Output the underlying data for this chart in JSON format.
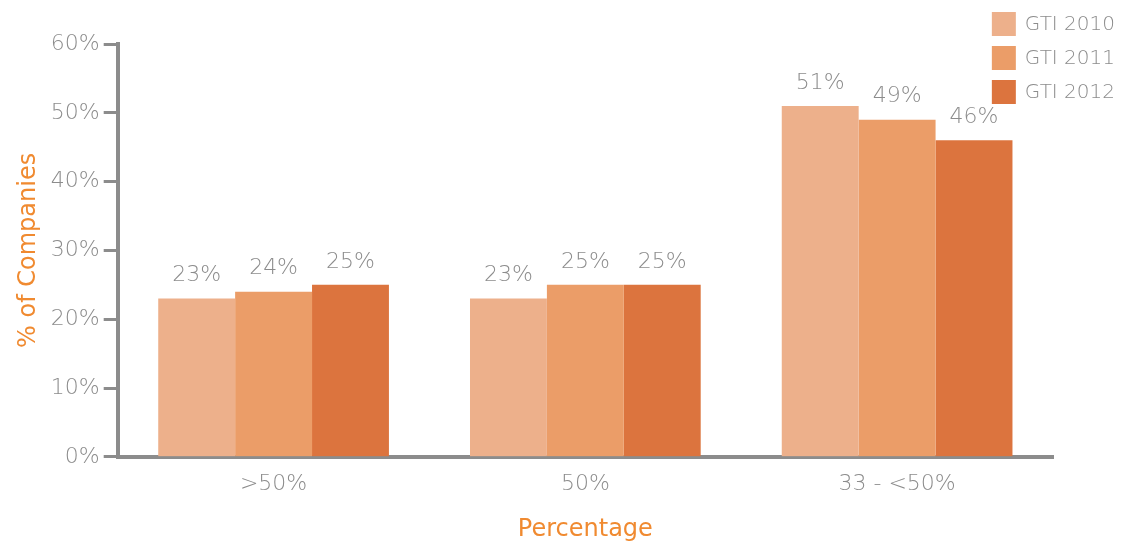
{
  "chart_data": {
    "type": "bar",
    "xlabel": "Percentage",
    "ylabel": "% of Companies",
    "categories": [
      ">50%",
      "50%",
      "33 - <50%"
    ],
    "series": [
      {
        "name": "GTI 2010",
        "color": "#edb08b",
        "values": [
          23,
          23,
          51
        ],
        "value_labels": [
          "23%",
          "23%",
          "51%"
        ]
      },
      {
        "name": "GTI 2011",
        "color": "#eb9d68",
        "values": [
          24,
          25,
          49
        ],
        "value_labels": [
          "24%",
          "25%",
          "49%"
        ]
      },
      {
        "name": "GTI 2012",
        "color": "#dc743e",
        "values": [
          25,
          25,
          46
        ],
        "value_labels": [
          "25%",
          "25%",
          "46%"
        ]
      }
    ],
    "ylim": [
      0,
      60
    ],
    "yticks": [
      {
        "value": 0,
        "label": "0%"
      },
      {
        "value": 10,
        "label": "10%"
      },
      {
        "value": 20,
        "label": "20%"
      },
      {
        "value": 30,
        "label": "30%"
      },
      {
        "value": 40,
        "label": "40%"
      },
      {
        "value": 50,
        "label": "50%"
      },
      {
        "value": 60,
        "label": "60%"
      }
    ],
    "grid": false,
    "legend": "top right"
  }
}
